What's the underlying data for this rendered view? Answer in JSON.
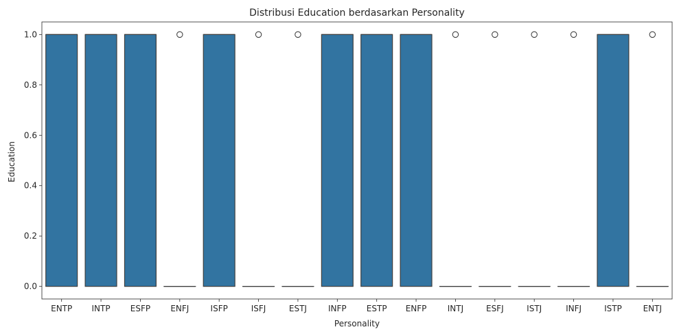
{
  "chart_data": {
    "type": "box",
    "title": "Distribusi Education berdasarkan Personality",
    "xlabel": "Personality",
    "ylabel": "Education",
    "ylim": [
      -0.05,
      1.05
    ],
    "yticks": [
      "0.0",
      "0.2",
      "0.4",
      "0.6",
      "0.8",
      "1.0"
    ],
    "ytick_values": [
      0,
      0.2,
      0.4,
      0.6,
      0.8,
      1.0
    ],
    "box_color": "#3274a1",
    "edge_color": "#3f3f3f",
    "categories": [
      "ENTP",
      "INTP",
      "ESFP",
      "ENFJ",
      "ISFP",
      "ISFJ",
      "ESTJ",
      "INFP",
      "ESTP",
      "ENFP",
      "INTJ",
      "ESFJ",
      "ISTJ",
      "INFJ",
      "ISTP",
      "ENTJ"
    ],
    "boxes": [
      {
        "category": "ENTP",
        "q1": 0,
        "median": 1,
        "q3": 1,
        "whisker_low": 0,
        "whisker_high": 1,
        "outliers": []
      },
      {
        "category": "INTP",
        "q1": 0,
        "median": 1,
        "q3": 1,
        "whisker_low": 0,
        "whisker_high": 1,
        "outliers": []
      },
      {
        "category": "ESFP",
        "q1": 0,
        "median": 1,
        "q3": 1,
        "whisker_low": 0,
        "whisker_high": 1,
        "outliers": []
      },
      {
        "category": "ENFJ",
        "q1": 0,
        "median": 0,
        "q3": 0,
        "whisker_low": 0,
        "whisker_high": 0,
        "outliers": [
          1
        ]
      },
      {
        "category": "ISFP",
        "q1": 0,
        "median": 1,
        "q3": 1,
        "whisker_low": 0,
        "whisker_high": 1,
        "outliers": []
      },
      {
        "category": "ISFJ",
        "q1": 0,
        "median": 0,
        "q3": 0,
        "whisker_low": 0,
        "whisker_high": 0,
        "outliers": [
          1
        ]
      },
      {
        "category": "ESTJ",
        "q1": 0,
        "median": 0,
        "q3": 0,
        "whisker_low": 0,
        "whisker_high": 0,
        "outliers": [
          1
        ]
      },
      {
        "category": "INFP",
        "q1": 0,
        "median": 1,
        "q3": 1,
        "whisker_low": 0,
        "whisker_high": 1,
        "outliers": []
      },
      {
        "category": "ESTP",
        "q1": 0,
        "median": 1,
        "q3": 1,
        "whisker_low": 0,
        "whisker_high": 1,
        "outliers": []
      },
      {
        "category": "ENFP",
        "q1": 0,
        "median": 1,
        "q3": 1,
        "whisker_low": 0,
        "whisker_high": 1,
        "outliers": []
      },
      {
        "category": "INTJ",
        "q1": 0,
        "median": 0,
        "q3": 0,
        "whisker_low": 0,
        "whisker_high": 0,
        "outliers": [
          1
        ]
      },
      {
        "category": "ESFJ",
        "q1": 0,
        "median": 0,
        "q3": 0,
        "whisker_low": 0,
        "whisker_high": 0,
        "outliers": [
          1
        ]
      },
      {
        "category": "ISTJ",
        "q1": 0,
        "median": 0,
        "q3": 0,
        "whisker_low": 0,
        "whisker_high": 0,
        "outliers": [
          1
        ]
      },
      {
        "category": "INFJ",
        "q1": 0,
        "median": 0,
        "q3": 0,
        "whisker_low": 0,
        "whisker_high": 0,
        "outliers": [
          1
        ]
      },
      {
        "category": "ISTP",
        "q1": 0,
        "median": 1,
        "q3": 1,
        "whisker_low": 0,
        "whisker_high": 1,
        "outliers": []
      },
      {
        "category": "ENTJ",
        "q1": 0,
        "median": 0,
        "q3": 0,
        "whisker_low": 0,
        "whisker_high": 0,
        "outliers": [
          1
        ]
      }
    ],
    "grid": false,
    "legend": "none"
  }
}
